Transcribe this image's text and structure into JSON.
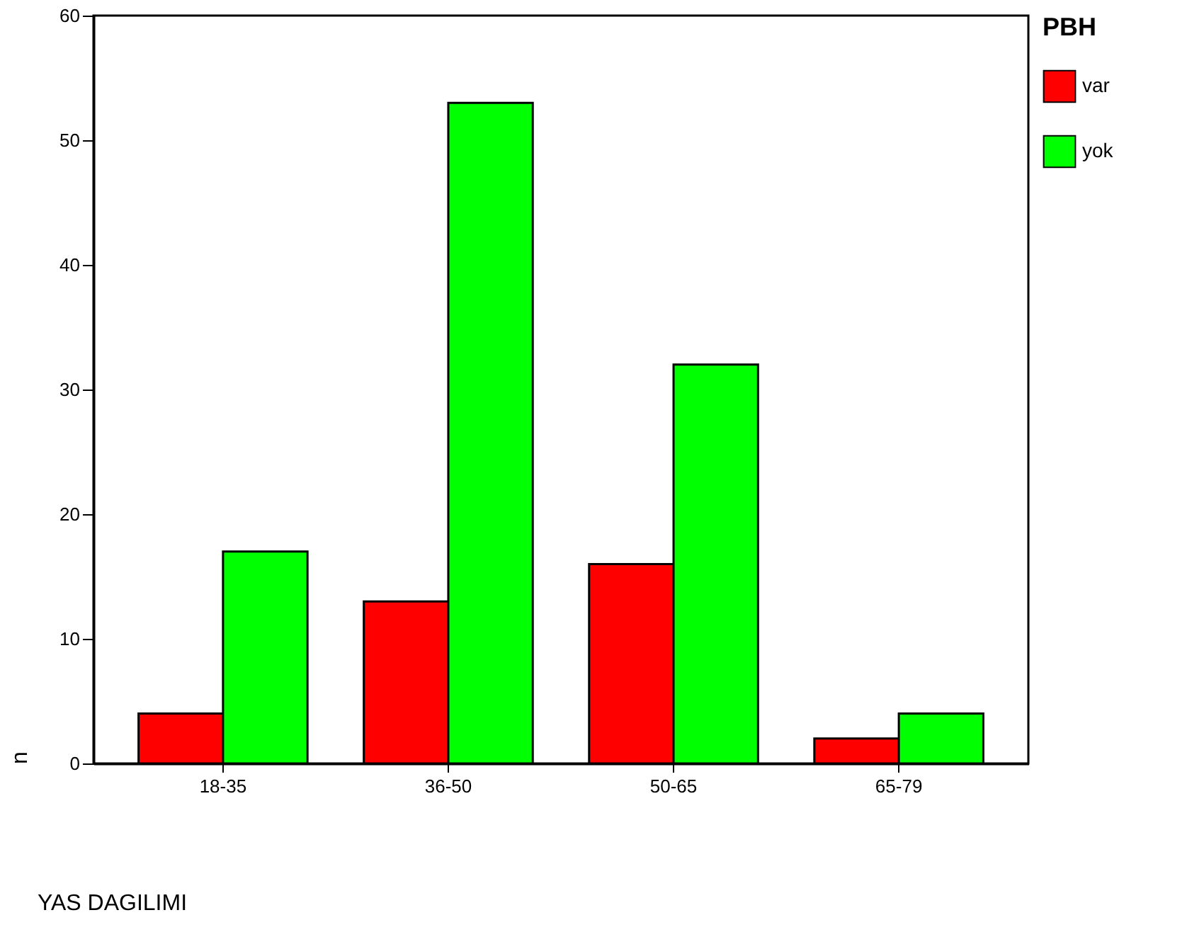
{
  "chart_data": {
    "type": "bar",
    "xlabel": "YAS DAGILIMI",
    "ylabel": "n",
    "legend_title": "PBH",
    "legend": "right",
    "categories": [
      "18-35",
      "36-50",
      "50-65",
      "65-79"
    ],
    "series": [
      {
        "name": "var",
        "color": "#ff0000",
        "values": [
          4,
          13,
          16,
          2
        ]
      },
      {
        "name": "yok",
        "color": "#00ff00",
        "values": [
          17,
          53,
          32,
          4
        ]
      }
    ],
    "ylim": [
      0,
      60
    ],
    "yticks": [
      0,
      10,
      20,
      30,
      40,
      50,
      60
    ],
    "grid": false
  }
}
